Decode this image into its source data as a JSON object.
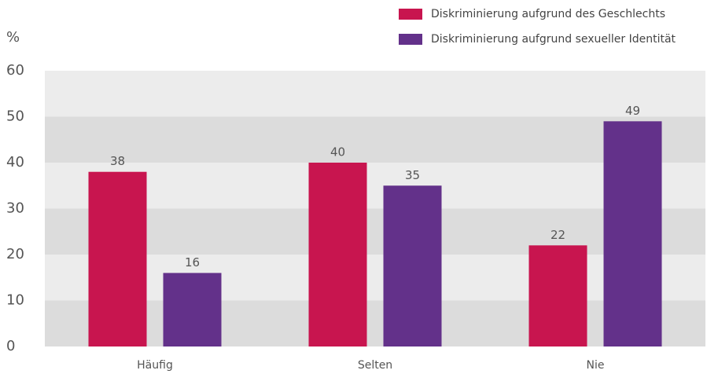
{
  "chart_data": {
    "type": "bar",
    "y_label": "%",
    "categories": [
      "Häufig",
      "Selten",
      "Nie"
    ],
    "series": [
      {
        "name": "Diskriminierung aufgrund des Geschlechts",
        "color": "#c8154f",
        "values": [
          38,
          40,
          22
        ]
      },
      {
        "name": "Diskriminierung aufgrund sexueller Identität",
        "color": "#63318a",
        "values": [
          16,
          35,
          49
        ]
      }
    ],
    "ylim": [
      0,
      60
    ],
    "yticks": [
      0,
      10,
      20,
      30,
      40,
      50,
      60
    ],
    "grid": true,
    "legend": "top-right"
  }
}
